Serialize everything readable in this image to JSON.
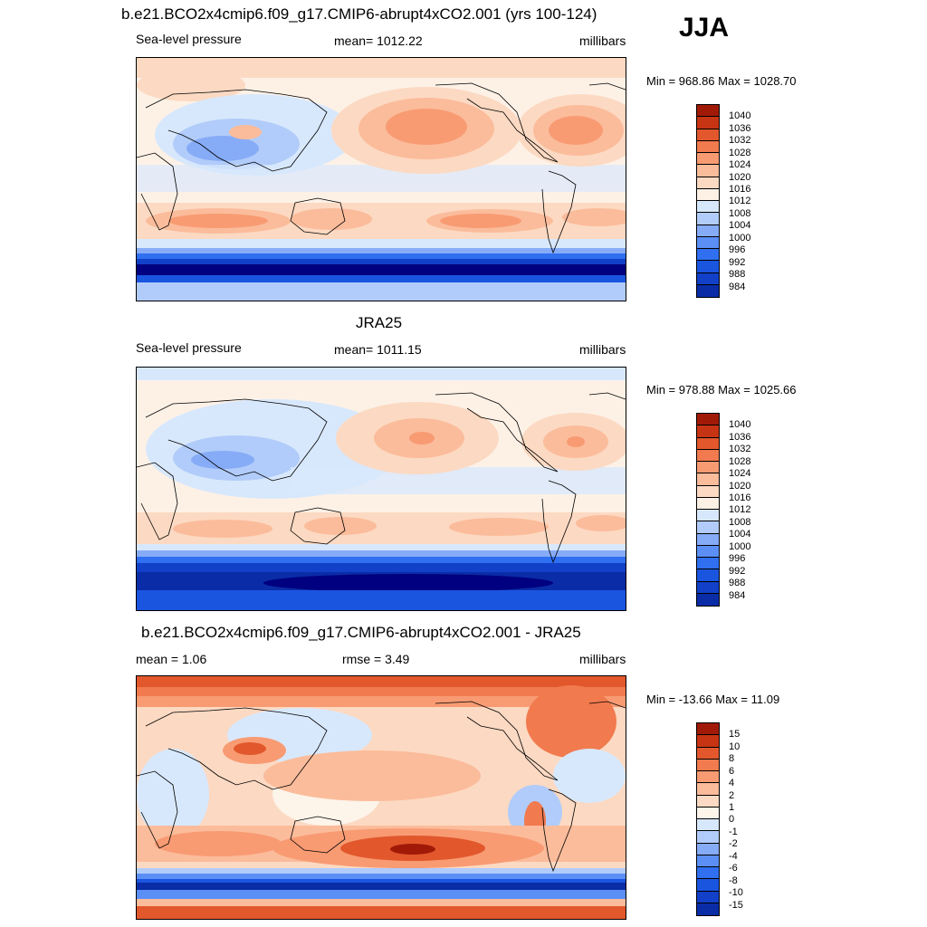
{
  "season": "JJA",
  "palettes": {
    "slp": [
      "#000080",
      "#0a2ca6",
      "#1240c8",
      "#1a55e0",
      "#2f6ff0",
      "#5b8ff5",
      "#86abf7",
      "#b1ccfa",
      "#d8e8fc",
      "#fdf1e6",
      "#fcd9c2",
      "#fbbc9b",
      "#f89b73",
      "#f17a4e",
      "#e2572c",
      "#c73414",
      "#a11a08",
      "#800000"
    ],
    "diff": [
      "#000080",
      "#0a2ca6",
      "#1240c8",
      "#1a55e0",
      "#2f6ff0",
      "#5b8ff5",
      "#86abf7",
      "#b1ccfa",
      "#d8e8fc",
      "#fdf4ea",
      "#fcd9c2",
      "#fbbc9b",
      "#f89b73",
      "#f17a4e",
      "#e2572c",
      "#c73414",
      "#a11a08",
      "#800000"
    ]
  },
  "panels": [
    {
      "title": "b.e21.BCO2x4cmip6.f09_g17.CMIP6-abrupt4xCO2.001 (yrs 100-124)",
      "left_label": "Sea-level pressure",
      "center_label": "mean= 1012.22",
      "right_label": "millibars",
      "minmax": "Min = 968.86 Max = 1028.70",
      "colorbar_labels": [
        "1040",
        "1036",
        "1032",
        "1028",
        "1024",
        "1020",
        "1016",
        "1012",
        "1008",
        "1004",
        "1000",
        "996",
        "992",
        "988",
        "984"
      ]
    },
    {
      "title": "JRA25",
      "left_label": "Sea-level pressure",
      "center_label": "mean= 1011.15",
      "right_label": "millibars",
      "minmax": "Min = 978.88 Max = 1025.66",
      "colorbar_labels": [
        "1040",
        "1036",
        "1032",
        "1028",
        "1024",
        "1020",
        "1016",
        "1012",
        "1008",
        "1004",
        "1000",
        "996",
        "992",
        "988",
        "984"
      ]
    },
    {
      "title": "b.e21.BCO2x4cmip6.f09_g17.CMIP6-abrupt4xCO2.001 - JRA25",
      "left_label": "mean =   1.06",
      "center_label": "rmse =   3.49",
      "right_label": "millibars",
      "minmax": "Min = -13.66 Max =  11.09",
      "colorbar_labels": [
        "15",
        "10",
        "8",
        "6",
        "4",
        "2",
        "1",
        "0",
        "-1",
        "-2",
        "-4",
        "-6",
        "-8",
        "-10",
        "-15"
      ]
    }
  ]
}
